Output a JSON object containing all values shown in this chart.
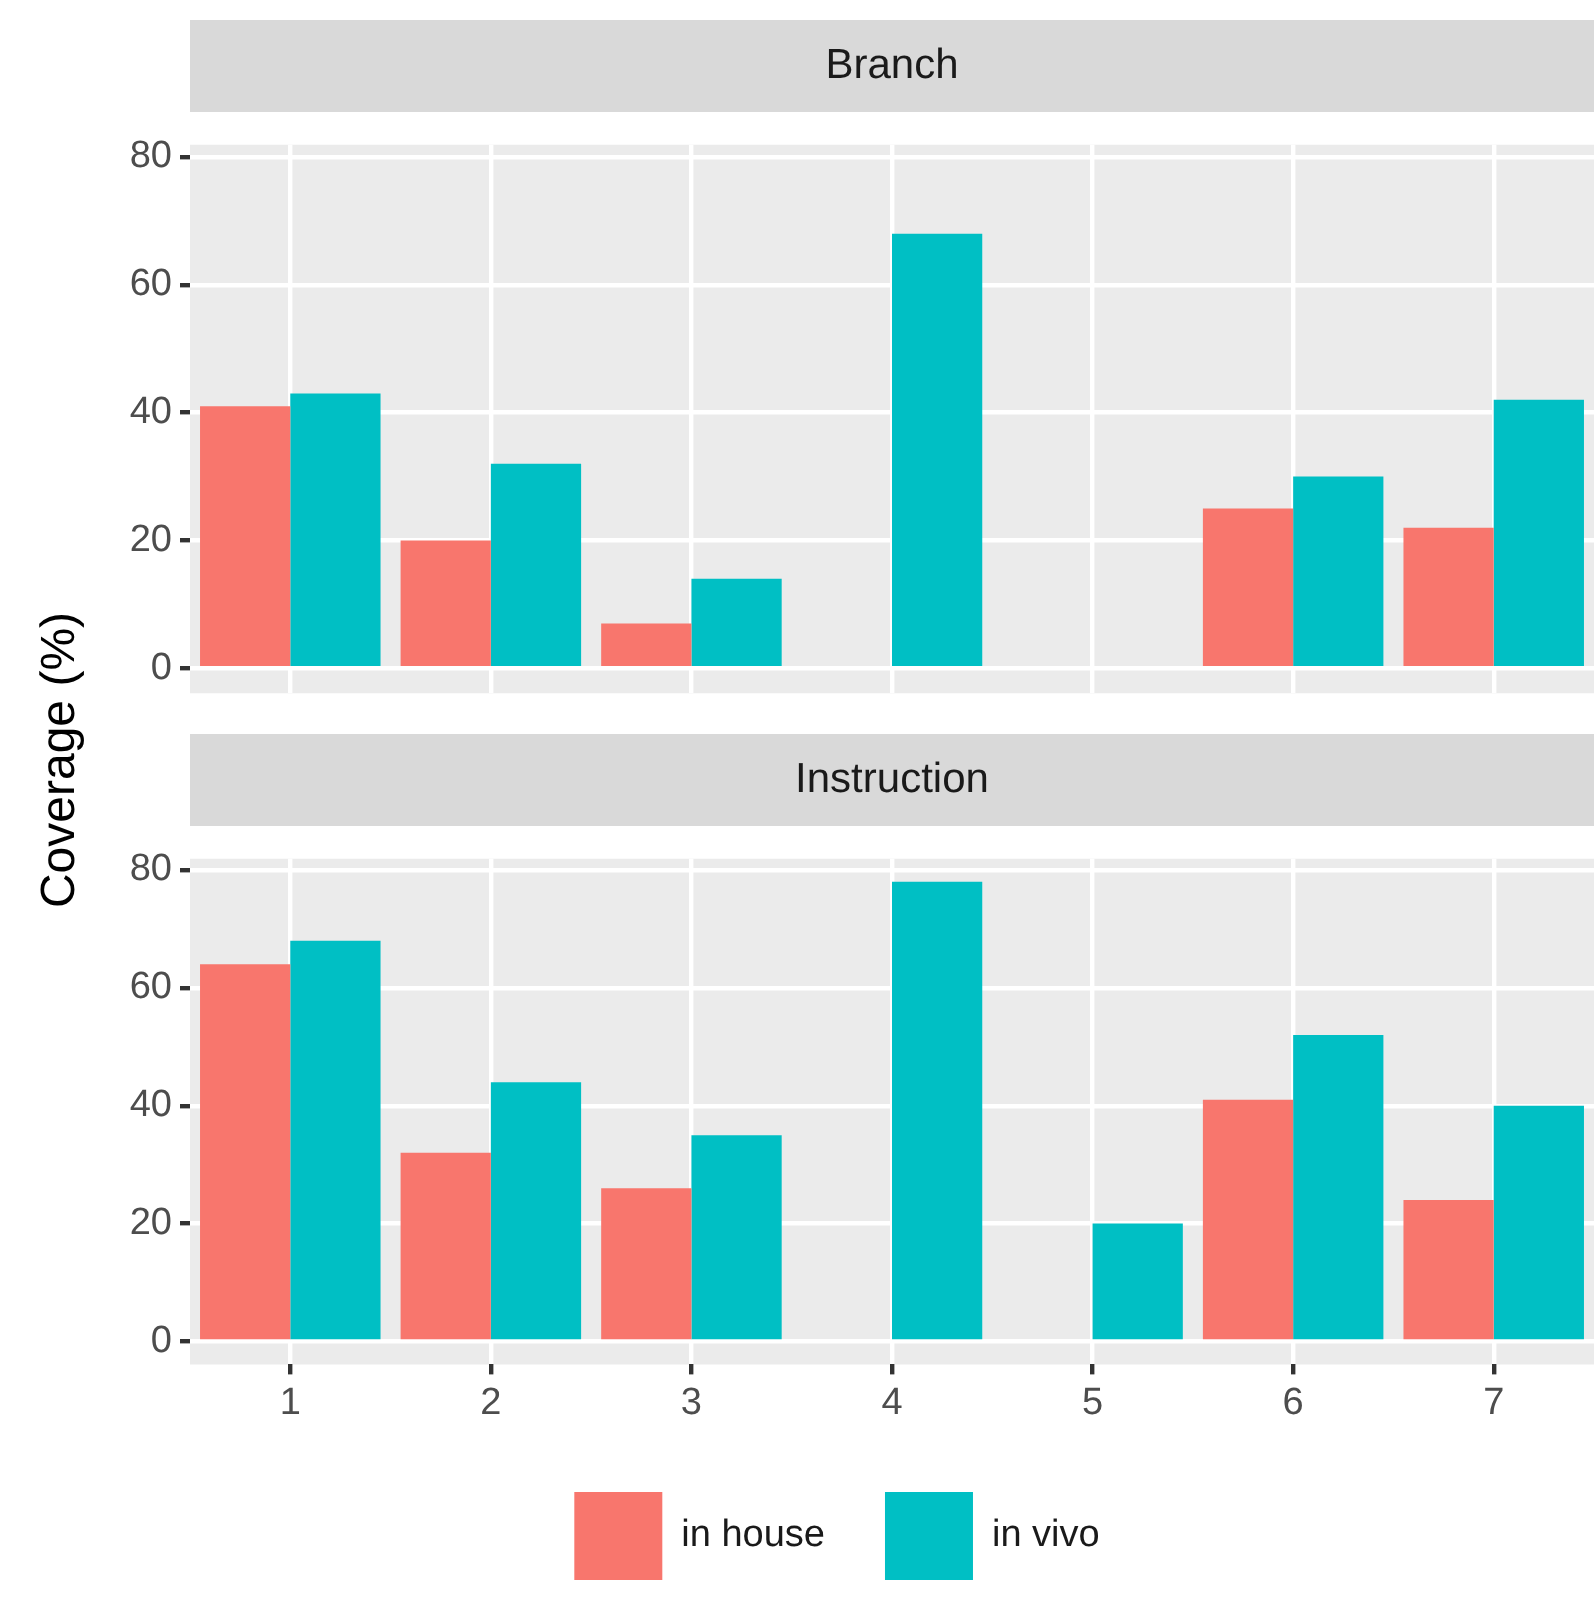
{
  "chart_data": [
    {
      "type": "bar",
      "title": "Branch",
      "ylabel": "Coverage (%)",
      "categories": [
        "1",
        "2",
        "3",
        "4",
        "5",
        "6",
        "7"
      ],
      "series": [
        {
          "color": "#f8766d",
          "values": [
            41,
            20,
            7,
            0,
            0,
            25,
            22
          ]
        },
        {
          "color": "#00bfc4",
          "values": [
            43,
            32,
            14,
            68,
            0,
            30,
            42
          ]
        }
      ],
      "ylim": [
        -3.9,
        81.9
      ],
      "yticks": [
        0,
        20,
        40,
        60,
        80
      ],
      "grid": true,
      "legend": false,
      "tick_labels": "y"
    },
    {
      "type": "bar",
      "title": "Instruction",
      "categories": [
        "1",
        "2",
        "3",
        "4",
        "5",
        "6",
        "7"
      ],
      "series": [
        {
          "name": "in house",
          "color": "#f8766d",
          "values": [
            64,
            32,
            26,
            0,
            0,
            41,
            24
          ]
        },
        {
          "name": "in vivo",
          "color": "#00bfc4",
          "values": [
            68,
            44,
            35,
            78,
            20,
            52,
            40
          ]
        }
      ],
      "ylim": [
        -3.9,
        81.9
      ],
      "yticks": [
        0,
        20,
        40,
        60,
        80
      ],
      "grid": true,
      "legend": "bottom"
    }
  ]
}
